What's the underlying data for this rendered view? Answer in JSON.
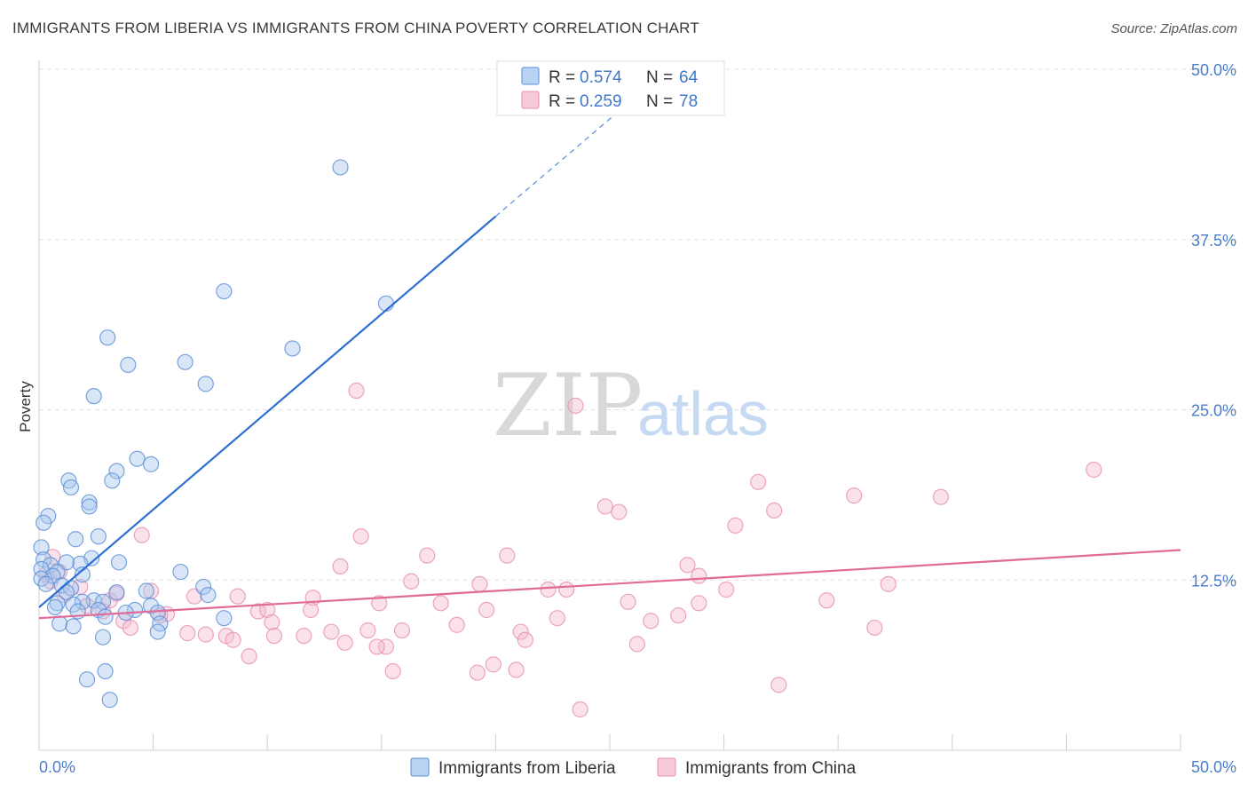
{
  "header": {
    "title": "IMMIGRANTS FROM LIBERIA VS IMMIGRANTS FROM CHINA POVERTY CORRELATION CHART",
    "source": "Source: ZipAtlas.com"
  },
  "watermark": {
    "zip": "ZIP",
    "atlas": "atlas"
  },
  "colors": {
    "liberia_fill": "#a9c8f0",
    "liberia_stroke": "#5b8fd6",
    "liberia_line": "#2f6fd1",
    "china_fill": "#f5bdd0",
    "china_stroke": "#e690b0",
    "china_line": "#e06a98",
    "tick_text": "#4a7cc9"
  },
  "legend": {
    "rows": [
      {
        "series": "liberia",
        "r_label": "R = ",
        "r_value": "0.574",
        "n_label": "N = ",
        "n_value": "64"
      },
      {
        "series": "china",
        "r_label": "R = ",
        "r_value": "0.259",
        "n_label": "N = ",
        "n_value": "78"
      }
    ]
  },
  "chart_data": {
    "type": "scatter",
    "title": "IMMIGRANTS FROM LIBERIA VS IMMIGRANTS FROM CHINA POVERTY CORRELATION CHART",
    "xlabel": "",
    "ylabel": "Poverty",
    "xlim": [
      0,
      50
    ],
    "ylim": [
      0,
      50
    ],
    "x_tick_labels": [
      "0.0%",
      "50.0%"
    ],
    "y_ticks": [
      12.5,
      25.0,
      37.5,
      50.0
    ],
    "y_tick_labels": [
      "12.5%",
      "25.0%",
      "37.5%",
      "50.0%"
    ],
    "grid": true,
    "legend_position": "top-center",
    "series": [
      {
        "name": "Immigrants from Liberia",
        "key": "liberia",
        "R": 0.574,
        "N": 64,
        "trend": {
          "x_start": 0.0,
          "y_start": 10.5,
          "x_end": 20.0,
          "y_end": 39.2,
          "dashed_to_x": 26.5,
          "dashed_to_y": 48.5
        },
        "points": [
          [
            13.2,
            42.8
          ],
          [
            8.1,
            33.7
          ],
          [
            15.2,
            32.8
          ],
          [
            3.0,
            30.3
          ],
          [
            11.1,
            29.5
          ],
          [
            3.9,
            28.3
          ],
          [
            6.4,
            28.5
          ],
          [
            7.3,
            26.9
          ],
          [
            2.4,
            26.0
          ],
          [
            4.3,
            21.4
          ],
          [
            4.9,
            21.0
          ],
          [
            3.4,
            20.5
          ],
          [
            1.3,
            19.8
          ],
          [
            3.2,
            19.8
          ],
          [
            1.4,
            19.3
          ],
          [
            2.2,
            18.2
          ],
          [
            2.2,
            17.9
          ],
          [
            0.4,
            17.2
          ],
          [
            2.6,
            15.7
          ],
          [
            1.6,
            15.5
          ],
          [
            0.1,
            14.9
          ],
          [
            2.3,
            14.1
          ],
          [
            0.2,
            14.0
          ],
          [
            3.5,
            13.8
          ],
          [
            1.8,
            13.7
          ],
          [
            0.5,
            13.6
          ],
          [
            1.2,
            13.8
          ],
          [
            0.1,
            13.3
          ],
          [
            0.8,
            13.1
          ],
          [
            1.9,
            12.9
          ],
          [
            6.2,
            13.1
          ],
          [
            0.6,
            12.8
          ],
          [
            0.1,
            12.6
          ],
          [
            0.3,
            12.2
          ],
          [
            1.0,
            12.1
          ],
          [
            1.4,
            11.9
          ],
          [
            1.2,
            11.6
          ],
          [
            7.2,
            12.0
          ],
          [
            4.7,
            11.7
          ],
          [
            3.4,
            11.6
          ],
          [
            7.4,
            11.4
          ],
          [
            2.4,
            11.0
          ],
          [
            1.9,
            10.9
          ],
          [
            0.8,
            10.8
          ],
          [
            2.8,
            10.9
          ],
          [
            1.5,
            10.7
          ],
          [
            0.7,
            10.5
          ],
          [
            4.9,
            10.6
          ],
          [
            4.2,
            10.3
          ],
          [
            3.8,
            10.1
          ],
          [
            1.7,
            10.2
          ],
          [
            2.6,
            10.3
          ],
          [
            5.2,
            10.1
          ],
          [
            2.9,
            9.8
          ],
          [
            8.1,
            9.7
          ],
          [
            0.9,
            9.3
          ],
          [
            1.5,
            9.1
          ],
          [
            5.3,
            9.3
          ],
          [
            5.2,
            8.7
          ],
          [
            2.8,
            8.3
          ],
          [
            2.9,
            5.8
          ],
          [
            2.1,
            5.2
          ],
          [
            3.1,
            3.7
          ],
          [
            0.2,
            16.7
          ]
        ]
      },
      {
        "name": "Immigrants from China",
        "key": "china",
        "R": 0.259,
        "N": 78,
        "trend": {
          "x_start": 0.0,
          "y_start": 9.7,
          "x_end": 50.0,
          "y_end": 14.7
        },
        "points": [
          [
            23.5,
            25.3
          ],
          [
            13.9,
            26.4
          ],
          [
            46.2,
            20.6
          ],
          [
            31.5,
            19.7
          ],
          [
            39.5,
            18.6
          ],
          [
            35.7,
            18.7
          ],
          [
            32.2,
            17.6
          ],
          [
            25.4,
            17.5
          ],
          [
            30.5,
            16.5
          ],
          [
            4.5,
            15.8
          ],
          [
            14.1,
            15.7
          ],
          [
            17.0,
            14.3
          ],
          [
            20.5,
            14.3
          ],
          [
            28.4,
            13.6
          ],
          [
            13.2,
            13.5
          ],
          [
            0.6,
            14.2
          ],
          [
            0.9,
            13.1
          ],
          [
            28.9,
            12.8
          ],
          [
            37.2,
            12.2
          ],
          [
            16.3,
            12.4
          ],
          [
            19.3,
            12.2
          ],
          [
            22.3,
            11.8
          ],
          [
            23.1,
            11.8
          ],
          [
            30.1,
            11.8
          ],
          [
            3.4,
            11.5
          ],
          [
            4.9,
            11.7
          ],
          [
            6.8,
            11.3
          ],
          [
            8.7,
            11.3
          ],
          [
            12.0,
            11.2
          ],
          [
            17.6,
            10.8
          ],
          [
            14.9,
            10.8
          ],
          [
            25.8,
            10.9
          ],
          [
            28.9,
            10.8
          ],
          [
            34.5,
            11.0
          ],
          [
            3.1,
            11.0
          ],
          [
            1.1,
            11.4
          ],
          [
            2.8,
            10.2
          ],
          [
            5.6,
            10.0
          ],
          [
            9.6,
            10.2
          ],
          [
            10.0,
            10.3
          ],
          [
            11.9,
            10.3
          ],
          [
            19.6,
            10.3
          ],
          [
            22.7,
            9.7
          ],
          [
            26.8,
            9.5
          ],
          [
            28.0,
            9.9
          ],
          [
            10.2,
            9.4
          ],
          [
            18.3,
            9.2
          ],
          [
            3.7,
            9.5
          ],
          [
            4.0,
            9.0
          ],
          [
            6.5,
            8.6
          ],
          [
            7.3,
            8.5
          ],
          [
            8.2,
            8.4
          ],
          [
            10.3,
            8.4
          ],
          [
            11.6,
            8.4
          ],
          [
            12.8,
            8.7
          ],
          [
            14.4,
            8.8
          ],
          [
            15.9,
            8.8
          ],
          [
            21.1,
            8.7
          ],
          [
            21.3,
            8.1
          ],
          [
            36.6,
            9.0
          ],
          [
            8.5,
            8.1
          ],
          [
            13.4,
            7.9
          ],
          [
            15.2,
            7.6
          ],
          [
            14.8,
            7.6
          ],
          [
            26.2,
            7.8
          ],
          [
            9.2,
            6.9
          ],
          [
            15.5,
            5.8
          ],
          [
            19.2,
            5.7
          ],
          [
            19.9,
            6.3
          ],
          [
            20.9,
            5.9
          ],
          [
            32.4,
            4.8
          ],
          [
            23.7,
            3.0
          ],
          [
            0.3,
            12.9
          ],
          [
            0.5,
            12.4
          ],
          [
            1.8,
            12.0
          ],
          [
            2.1,
            10.6
          ],
          [
            5.3,
            9.9
          ],
          [
            24.8,
            17.9
          ]
        ]
      }
    ]
  },
  "bottom_legend": [
    {
      "series": "liberia",
      "label": "Immigrants from Liberia"
    },
    {
      "series": "china",
      "label": "Immigrants from China"
    }
  ]
}
